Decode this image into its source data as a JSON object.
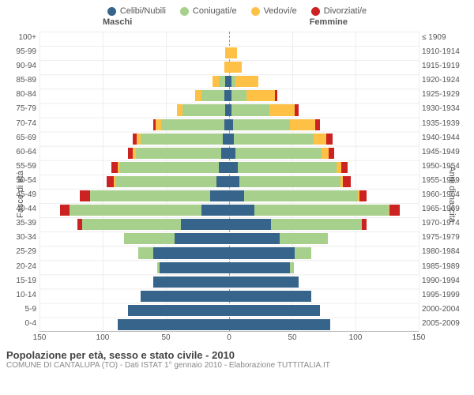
{
  "legend": {
    "items": [
      {
        "label": "Celibi/Nubili",
        "color": "#36648b"
      },
      {
        "label": "Coniugati/e",
        "color": "#a8d08d"
      },
      {
        "label": "Vedovi/e",
        "color": "#ffc145"
      },
      {
        "label": "Divorziati/e",
        "color": "#cc2222"
      }
    ]
  },
  "header": {
    "male": "Maschi",
    "female": "Femmine",
    "leftAxis": "Fasce di età",
    "rightAxis": "Anni di nascita"
  },
  "chart": {
    "type": "population-pyramid",
    "xmax": 150,
    "xticks": [
      150,
      100,
      50,
      0,
      50,
      100,
      150
    ],
    "colors": {
      "single": "#36648b",
      "married": "#a8d08d",
      "widowed": "#ffc145",
      "divorced": "#cc2222",
      "grid": "#ededed",
      "axis": "#999999"
    },
    "rows": [
      {
        "age": "100+",
        "birth": "≤ 1909",
        "m": [
          0,
          0,
          0,
          0
        ],
        "f": [
          0,
          0,
          0,
          0
        ]
      },
      {
        "age": "95-99",
        "birth": "1910-1914",
        "m": [
          0,
          0,
          3,
          0
        ],
        "f": [
          0,
          0,
          6,
          0
        ]
      },
      {
        "age": "90-94",
        "birth": "1915-1919",
        "m": [
          0,
          0,
          4,
          0
        ],
        "f": [
          0,
          0,
          10,
          0
        ]
      },
      {
        "age": "85-89",
        "birth": "1920-1924",
        "m": [
          3,
          5,
          5,
          0
        ],
        "f": [
          2,
          3,
          18,
          0
        ]
      },
      {
        "age": "80-84",
        "birth": "1925-1929",
        "m": [
          4,
          18,
          5,
          0
        ],
        "f": [
          2,
          12,
          22,
          2
        ]
      },
      {
        "age": "75-79",
        "birth": "1930-1934",
        "m": [
          3,
          34,
          4,
          0
        ],
        "f": [
          2,
          30,
          20,
          3
        ]
      },
      {
        "age": "70-74",
        "birth": "1935-1939",
        "m": [
          4,
          50,
          4,
          2
        ],
        "f": [
          3,
          45,
          20,
          4
        ]
      },
      {
        "age": "65-69",
        "birth": "1940-1944",
        "m": [
          5,
          65,
          3,
          3
        ],
        "f": [
          4,
          63,
          10,
          5
        ]
      },
      {
        "age": "60-64",
        "birth": "1945-1949",
        "m": [
          6,
          68,
          2,
          4
        ],
        "f": [
          5,
          68,
          6,
          4
        ]
      },
      {
        "age": "55-59",
        "birth": "1950-1954",
        "m": [
          8,
          78,
          2,
          5
        ],
        "f": [
          7,
          78,
          4,
          5
        ]
      },
      {
        "age": "50-54",
        "birth": "1955-1959",
        "m": [
          10,
          80,
          1,
          6
        ],
        "f": [
          8,
          80,
          2,
          6
        ]
      },
      {
        "age": "45-49",
        "birth": "1960-1964",
        "m": [
          15,
          95,
          0,
          8
        ],
        "f": [
          12,
          90,
          1,
          6
        ]
      },
      {
        "age": "40-44",
        "birth": "1965-1969",
        "m": [
          22,
          104,
          0,
          8
        ],
        "f": [
          20,
          106,
          1,
          8
        ]
      },
      {
        "age": "35-39",
        "birth": "1970-1974",
        "m": [
          38,
          78,
          0,
          4
        ],
        "f": [
          33,
          72,
          0,
          4
        ]
      },
      {
        "age": "30-34",
        "birth": "1975-1979",
        "m": [
          43,
          40,
          0,
          0
        ],
        "f": [
          40,
          38,
          0,
          0
        ]
      },
      {
        "age": "25-29",
        "birth": "1980-1984",
        "m": [
          60,
          12,
          0,
          0
        ],
        "f": [
          52,
          13,
          0,
          0
        ]
      },
      {
        "age": "20-24",
        "birth": "1985-1989",
        "m": [
          55,
          2,
          0,
          0
        ],
        "f": [
          48,
          3,
          0,
          0
        ]
      },
      {
        "age": "15-19",
        "birth": "1990-1994",
        "m": [
          60,
          0,
          0,
          0
        ],
        "f": [
          55,
          0,
          0,
          0
        ]
      },
      {
        "age": "10-14",
        "birth": "1995-1999",
        "m": [
          70,
          0,
          0,
          0
        ],
        "f": [
          65,
          0,
          0,
          0
        ]
      },
      {
        "age": "5-9",
        "birth": "2000-2004",
        "m": [
          80,
          0,
          0,
          0
        ],
        "f": [
          72,
          0,
          0,
          0
        ]
      },
      {
        "age": "0-4",
        "birth": "2005-2009",
        "m": [
          88,
          0,
          0,
          0
        ],
        "f": [
          80,
          0,
          0,
          0
        ]
      }
    ]
  },
  "caption": {
    "title": "Popolazione per età, sesso e stato civile - 2010",
    "subtitle": "COMUNE DI CANTALUPA (TO) - Dati ISTAT 1° gennaio 2010 - Elaborazione TUTTITALIA.IT"
  }
}
